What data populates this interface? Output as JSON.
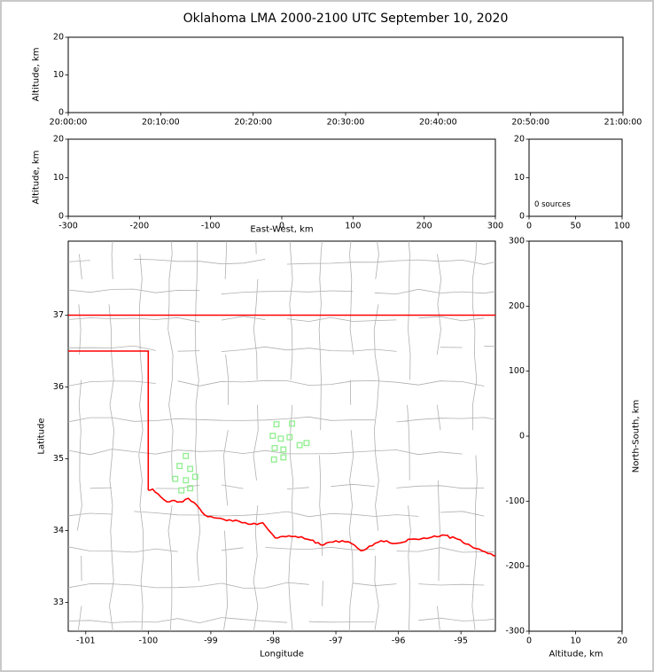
{
  "title": "Oklahoma LMA 2000-2100 UTC September 10, 2020",
  "colors": {
    "background": "#ffffff",
    "figure_frame": "#c8c8c8",
    "axes": "#000000",
    "county_lines": "#b0b0b0",
    "state_border": "#ff0000",
    "marker": "#90ee90"
  },
  "chart_data": {
    "type": "scatter",
    "title": "Oklahoma LMA 2000-2100 UTC September 10, 2020",
    "marker_shape": "open-square",
    "panels": {
      "time_height": {
        "ylabel": "Altitude, km",
        "xticks": [
          "20:00:00",
          "20:10:00",
          "20:20:00",
          "20:30:00",
          "20:40:00",
          "20:50:00",
          "21:00:00"
        ],
        "yticks": [
          0,
          10,
          20
        ],
        "ylim": [
          0,
          20
        ],
        "points": []
      },
      "ew_height": {
        "xlabel": "East-West, km",
        "ylabel": "Altitude, km",
        "xticks": [
          -300,
          -200,
          -100,
          0,
          100,
          200,
          300
        ],
        "xlim": [
          -300,
          300
        ],
        "yticks": [
          0,
          10,
          20
        ],
        "ylim": [
          0,
          20
        ],
        "points": []
      },
      "alt_histogram": {
        "annotation": "0 sources",
        "xticks": [
          0,
          50,
          100
        ],
        "xlim": [
          0,
          100
        ],
        "yticks": [
          0,
          10,
          20
        ],
        "ylim": [
          0,
          20
        ],
        "points": []
      },
      "plan_view": {
        "xlabel": "Longitude",
        "ylabel": "Latitude",
        "xticks": [
          -101,
          -100,
          -99,
          -98,
          -97,
          -96,
          -95
        ],
        "xlim": [
          -101.28,
          -94.45
        ],
        "yticks": [
          33,
          34,
          35,
          36,
          37
        ],
        "ylim": [
          32.6,
          38.03
        ],
        "markers": {
          "lon": [
            -97.95,
            -97.7,
            -98.01,
            -97.88,
            -97.74,
            -97.98,
            -97.84,
            -97.58,
            -97.47,
            -97.99,
            -97.84,
            -99.4,
            -99.5,
            -99.33,
            -99.57,
            -99.4,
            -99.25,
            -99.47,
            -99.33
          ],
          "lat": [
            35.48,
            35.49,
            35.32,
            35.28,
            35.3,
            35.15,
            35.13,
            35.19,
            35.22,
            34.99,
            35.02,
            35.04,
            34.9,
            34.86,
            34.72,
            34.7,
            34.75,
            34.56,
            34.59
          ]
        },
        "state_border": [
          [
            [
              -103.0,
              37.0
            ],
            [
              -94.43,
              37.0
            ]
          ],
          [
            [
              -103.0,
              36.5
            ],
            [
              -100.0,
              36.5
            ],
            [
              -100.0,
              34.563
            ]
          ]
        ],
        "red_river": [
          [
            -100.0,
            34.563
          ],
          [
            -99.93,
            34.58
          ],
          [
            -99.8,
            34.47
          ],
          [
            -99.7,
            34.4
          ],
          [
            -99.58,
            34.42
          ],
          [
            -99.45,
            34.4
          ],
          [
            -99.36,
            34.45
          ],
          [
            -99.22,
            34.35
          ],
          [
            -99.1,
            34.22
          ],
          [
            -98.95,
            34.18
          ],
          [
            -98.75,
            34.14
          ],
          [
            -98.55,
            34.13
          ],
          [
            -98.4,
            34.09
          ],
          [
            -98.17,
            34.11
          ],
          [
            -98.08,
            34.01
          ],
          [
            -97.97,
            33.9
          ],
          [
            -97.85,
            33.92
          ],
          [
            -97.65,
            33.92
          ],
          [
            -97.45,
            33.88
          ],
          [
            -97.2,
            33.8
          ],
          [
            -97.05,
            33.84
          ],
          [
            -96.9,
            33.86
          ],
          [
            -96.75,
            33.82
          ],
          [
            -96.6,
            33.72
          ],
          [
            -96.42,
            33.79
          ],
          [
            -96.28,
            33.86
          ],
          [
            -96.05,
            33.82
          ],
          [
            -95.8,
            33.88
          ],
          [
            -95.55,
            33.89
          ],
          [
            -95.3,
            33.94
          ],
          [
            -95.05,
            33.88
          ],
          [
            -94.8,
            33.76
          ],
          [
            -94.43,
            33.65
          ]
        ]
      },
      "ns_height": {
        "xlabel": "Altitude, km",
        "ylabel": "North-South, km",
        "xticks": [
          0,
          10,
          20
        ],
        "xlim": [
          0,
          20
        ],
        "yticks": [
          300,
          200,
          100,
          0,
          -100,
          -200,
          -300
        ],
        "ylim": [
          -300,
          300
        ],
        "points": []
      }
    }
  }
}
